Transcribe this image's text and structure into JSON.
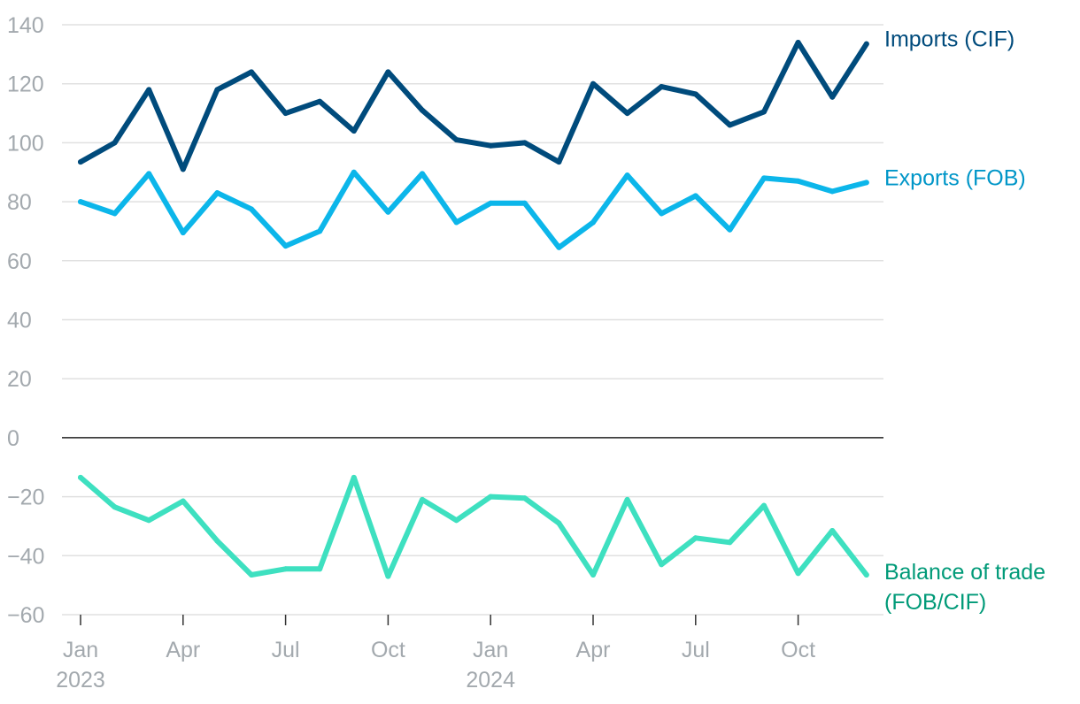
{
  "chart_data": {
    "type": "line",
    "title": "",
    "xlabel": "",
    "ylabel": "",
    "ylim": [
      -60,
      140
    ],
    "yticks": [
      -60,
      -40,
      -20,
      0,
      20,
      40,
      60,
      80,
      100,
      120,
      140
    ],
    "grid": true,
    "legend": "inline-right",
    "x": [
      "2023-01",
      "2023-02",
      "2023-03",
      "2023-04",
      "2023-05",
      "2023-06",
      "2023-07",
      "2023-08",
      "2023-09",
      "2023-10",
      "2023-11",
      "2023-12",
      "2024-01",
      "2024-02",
      "2024-03",
      "2024-04",
      "2024-05",
      "2024-06",
      "2024-07",
      "2024-08",
      "2024-09",
      "2024-10",
      "2024-11",
      "2024-12"
    ],
    "xticks": [
      {
        "x": "2023-01",
        "label": "Jan",
        "year": "2023"
      },
      {
        "x": "2023-04",
        "label": "Apr",
        "year": ""
      },
      {
        "x": "2023-07",
        "label": "Jul",
        "year": ""
      },
      {
        "x": "2023-10",
        "label": "Oct",
        "year": ""
      },
      {
        "x": "2024-01",
        "label": "Jan",
        "year": "2024"
      },
      {
        "x": "2024-04",
        "label": "Apr",
        "year": ""
      },
      {
        "x": "2024-07",
        "label": "Jul",
        "year": ""
      },
      {
        "x": "2024-10",
        "label": "Oct",
        "year": ""
      }
    ],
    "series": [
      {
        "name": "Imports (CIF)",
        "label_lines": [
          "Imports (CIF)"
        ],
        "color": "#004b7c",
        "label_color": "#004b7c",
        "values": [
          93.5,
          100,
          118,
          91,
          118,
          124,
          110,
          114,
          104,
          124,
          111,
          101,
          99,
          100,
          93.5,
          120,
          110,
          119,
          116.5,
          106,
          110.5,
          134,
          115.5,
          133.5
        ]
      },
      {
        "name": "Exports (FOB)",
        "label_lines": [
          "Exports (FOB)"
        ],
        "color": "#0cb6ea",
        "label_color": "#0096c8",
        "values": [
          80,
          76,
          89.5,
          69.5,
          83,
          77.5,
          65,
          70,
          90,
          76.5,
          89.5,
          73,
          79.5,
          79.5,
          64.5,
          73,
          89,
          76,
          82,
          70.5,
          88,
          87,
          83.5,
          86.5
        ]
      },
      {
        "name": "Balance of trade (FOB/CIF)",
        "label_lines": [
          "Balance of trade",
          "(FOB/CIF)"
        ],
        "color": "#3ee0c0",
        "label_color": "#009a78",
        "values": [
          -13.5,
          -23.5,
          -28,
          -21.5,
          -35,
          -46.5,
          -44.5,
          -44.5,
          -13.5,
          -47,
          -21,
          -28,
          -20,
          -20.5,
          -29,
          -46.5,
          -21,
          -43,
          -34,
          -35.5,
          -23,
          -46,
          -31.5,
          -46.5
        ]
      }
    ]
  }
}
